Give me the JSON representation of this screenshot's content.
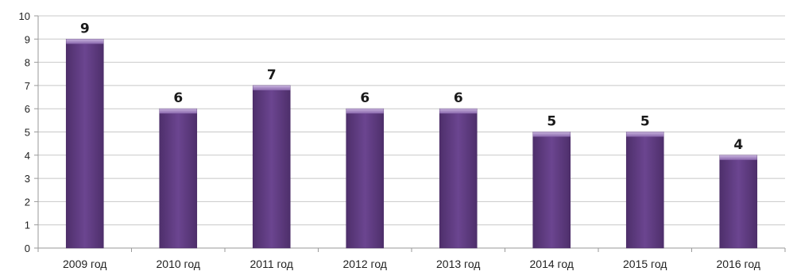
{
  "chart_data": {
    "type": "bar",
    "title": "",
    "xlabel": "",
    "ylabel": "",
    "categories": [
      "2009 год",
      "2010 год",
      "2011 год",
      "2012 год",
      "2013 год",
      "2014 год",
      "2015 год",
      "2016 год"
    ],
    "values": [
      9,
      6,
      7,
      6,
      6,
      5,
      5,
      4
    ],
    "ylim": [
      0,
      10
    ],
    "yticks": [
      0,
      1,
      2,
      3,
      4,
      5,
      6,
      7,
      8,
      9,
      10
    ],
    "grid": true,
    "legend": "none",
    "colors": {
      "bar": "#5e3a7e",
      "bar_top": "#a58bc3",
      "bar_edge": "#4a2c66",
      "grid": "#c8c8c8",
      "axis": "#9a9a9a"
    }
  }
}
